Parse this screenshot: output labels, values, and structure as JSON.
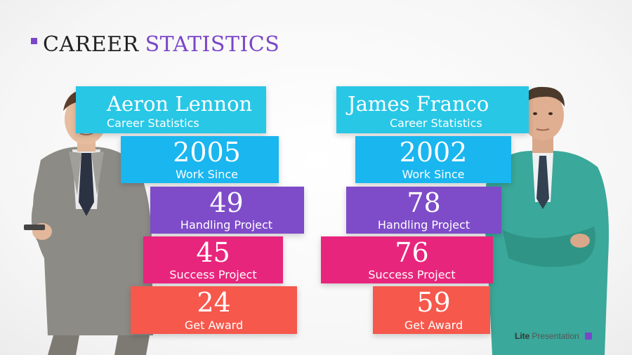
{
  "title": {
    "part1": "CAREER",
    "part2": "STATISTICS"
  },
  "colors": {
    "accent": "#7b46c9",
    "cyan": "#28c7e6",
    "blue": "#1ab6ef",
    "purple": "#7e4cc9",
    "pink": "#e8257c",
    "orange": "#f6584c"
  },
  "left": {
    "name": "Aeron Lennon",
    "subtitle": "Career Statistics",
    "stats": [
      {
        "value": "2005",
        "label": "Work Since"
      },
      {
        "value": "49",
        "label": "Handling Project"
      },
      {
        "value": "45",
        "label": "Success Project"
      },
      {
        "value": "24",
        "label": "Get Award"
      }
    ]
  },
  "right": {
    "name": "James Franco",
    "subtitle": "Career Statistics",
    "stats": [
      {
        "value": "2002",
        "label": "Work Since"
      },
      {
        "value": "78",
        "label": "Handling Project"
      },
      {
        "value": "76",
        "label": "Success Project"
      },
      {
        "value": "59",
        "label": "Get Award"
      }
    ]
  },
  "footer": {
    "bold": "Lite",
    "rest": "Presentation"
  }
}
